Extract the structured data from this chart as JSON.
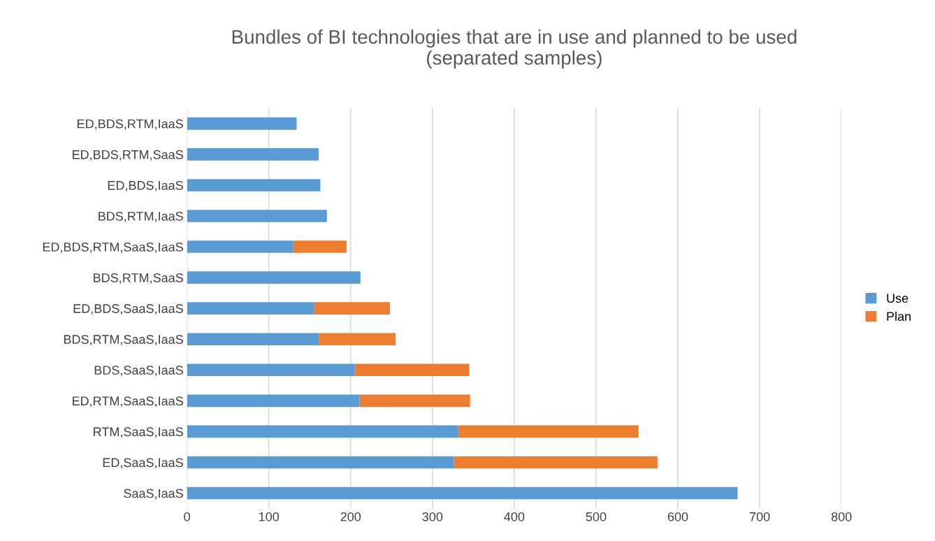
{
  "chart_data": {
    "type": "bar",
    "orientation": "horizontal",
    "stacked": true,
    "title": "Bundles of BI technologies that are in use and planned to be used\n(separated samples)",
    "categories": [
      "ED,BDS,RTM,IaaS",
      "ED,BDS,RTM,SaaS",
      "ED,BDS,IaaS",
      "BDS,RTM,IaaS",
      "ED,BDS,RTM,SaaS,IaaS",
      "BDS,RTM,SaaS",
      "ED,BDS,SaaS,IaaS",
      "BDS,RTM,SaaS,IaaS",
      "BDS,SaaS,IaaS",
      "ED,RTM,SaaS,IaaS",
      "RTM,SaaS,IaaS",
      "ED,SaaS,IaaS",
      "SaaS,IaaS"
    ],
    "series": [
      {
        "name": "Use",
        "color": "#5b9bd5",
        "values": [
          134,
          161,
          163,
          171,
          130,
          212,
          155,
          161,
          205,
          211,
          331,
          326,
          673
        ]
      },
      {
        "name": "Plan",
        "color": "#ed7d31",
        "values": [
          null,
          null,
          null,
          null,
          65,
          null,
          93,
          94,
          140,
          135,
          221,
          249,
          null
        ]
      }
    ],
    "xlim": [
      0,
      800
    ],
    "xticks": [
      0,
      100,
      200,
      300,
      400,
      500,
      600,
      700,
      800
    ],
    "grid": "x",
    "legend": "right"
  }
}
